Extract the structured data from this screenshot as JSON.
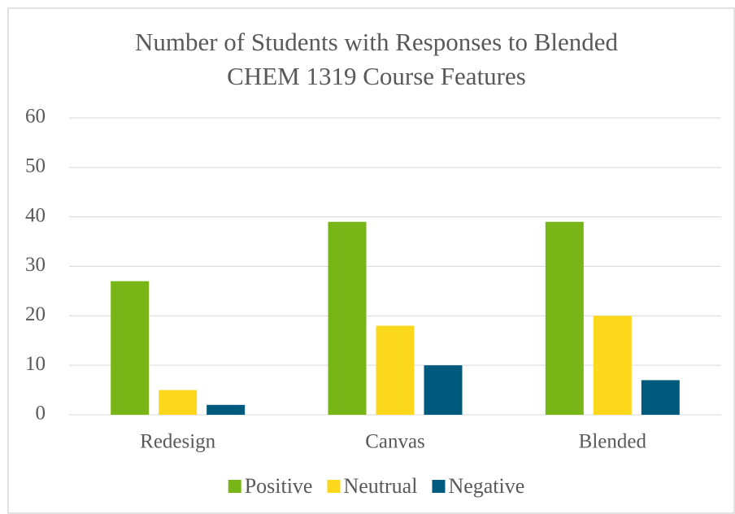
{
  "chart_data": {
    "type": "bar",
    "title": [
      "Number of Students with Responses to Blended",
      "CHEM 1319 Course Features"
    ],
    "categories": [
      "Redesign",
      "Canvas",
      "Blended"
    ],
    "series": [
      {
        "name": "Positive",
        "color": "#78b617",
        "values": [
          27,
          39,
          39
        ]
      },
      {
        "name": "Neutrual",
        "color": "#fcd81c",
        "values": [
          5,
          18,
          20
        ]
      },
      {
        "name": "Negative",
        "color": "#005a7e",
        "values": [
          2,
          10,
          7
        ]
      }
    ],
    "ylim": [
      0,
      60
    ],
    "yticks": [
      0,
      10,
      20,
      30,
      40,
      50,
      60
    ],
    "grid": true,
    "legend": "bottom"
  }
}
